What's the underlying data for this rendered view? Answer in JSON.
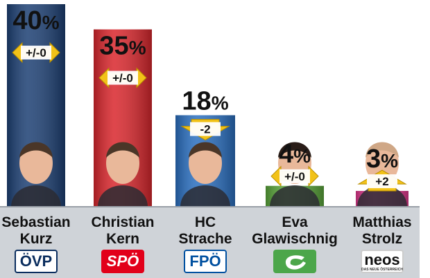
{
  "chart_data": {
    "type": "bar",
    "ylim": [
      0,
      40
    ],
    "categories": [
      "Sebastian Kurz",
      "Christian Kern",
      "HC Strache",
      "Eva Glawischnig",
      "Matthias Strolz"
    ],
    "bars": [
      {
        "name_lines": [
          "Sebastian",
          "Kurz"
        ],
        "party": "ÖVP",
        "value": 40,
        "value_label": "40%",
        "change": "+/-0",
        "change_dir": "both",
        "bar_color": "#1c3f73",
        "logo_bg": "#ffffff",
        "logo_fg": "#0a2d5e",
        "logo_border": "#0a2d5e"
      },
      {
        "name_lines": [
          "Christian",
          "Kern"
        ],
        "party": "SPÖ",
        "value": 35,
        "value_label": "35%",
        "change": "+/-0",
        "change_dir": "both",
        "bar_color": "#d9262c",
        "logo_bg": "#e2001a",
        "logo_fg": "#ffffff",
        "logo_border": "#e2001a"
      },
      {
        "name_lines": [
          "HC",
          "Strache"
        ],
        "party": "FPÖ",
        "value": 18,
        "value_label": "18%",
        "change": "-2",
        "change_dir": "down",
        "bar_color": "#2a6fc0",
        "logo_bg": "#ffffff",
        "logo_fg": "#0050a0",
        "logo_border": "#0050a0"
      },
      {
        "name_lines": [
          "Eva",
          "Glawischnig"
        ],
        "party": "GRÜNE",
        "value": 4,
        "value_label": "4%",
        "change": "+/-0",
        "change_dir": "both",
        "bar_color": "#5aa63a",
        "logo_bg": "#4ca64a",
        "logo_fg": "#ffffff",
        "logo_border": "#4ca64a"
      },
      {
        "name_lines": [
          "Matthias",
          "Strolz"
        ],
        "party": "NEOS",
        "value": 3,
        "value_label": "3%",
        "change": "+2",
        "change_dir": "up",
        "bar_color": "#e3398f",
        "logo_bg": "#ffffff",
        "logo_fg": "#111111",
        "logo_border": "#cccccc",
        "logo_sub": "DAS NEUE ÖSTERREICH"
      }
    ]
  },
  "colors": {
    "arrow_fill": "#f2c218",
    "arrow_inner": "#ffffff",
    "base_strip": "#cfd3d8"
  }
}
